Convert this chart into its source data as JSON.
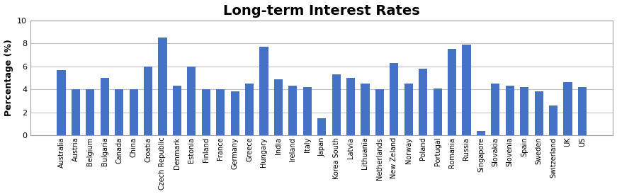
{
  "title": "Long-term Interest Rates",
  "ylabel": "Percentage (%)",
  "ylim": [
    0,
    10
  ],
  "yticks": [
    0,
    2,
    4,
    6,
    8,
    10
  ],
  "bar_color": "#4472C4",
  "categories": [
    "Australia",
    "Austria",
    "Belgium",
    "Bulgaria",
    "Canada",
    "China",
    "Croatia",
    "Czech Republic",
    "Denmark",
    "Estonia",
    "Finland",
    "France",
    "Germany",
    "Greece",
    "Hungary",
    "India",
    "Ireland",
    "Italy",
    "Japan",
    "Korea South",
    "Latvia",
    "Lithuania",
    "Netherlands",
    "New Zeland",
    "Norway",
    "Poland",
    "Portugal",
    "Romania",
    "Russia",
    "Singapore",
    "Slovakia",
    "Slovenia",
    "Spain",
    "Sweden",
    "Switzerland",
    "UK",
    "US"
  ],
  "values": [
    5.7,
    4.0,
    4.0,
    5.0,
    4.0,
    4.0,
    6.0,
    8.5,
    4.3,
    6.0,
    4.0,
    4.0,
    3.8,
    4.5,
    7.7,
    4.9,
    4.3,
    4.2,
    1.5,
    5.3,
    5.0,
    4.5,
    4.0,
    6.3,
    4.5,
    5.8,
    4.1,
    7.5,
    7.9,
    0.4,
    4.5,
    4.3,
    4.2,
    3.8,
    2.6,
    4.6,
    4.2
  ],
  "plot_bgcolor": "#FFFFFF",
  "grid_color": "#C0C0C0",
  "border_color": "#A0A0A0",
  "title_fontsize": 14,
  "ylabel_fontsize": 9,
  "tick_fontsize": 7
}
